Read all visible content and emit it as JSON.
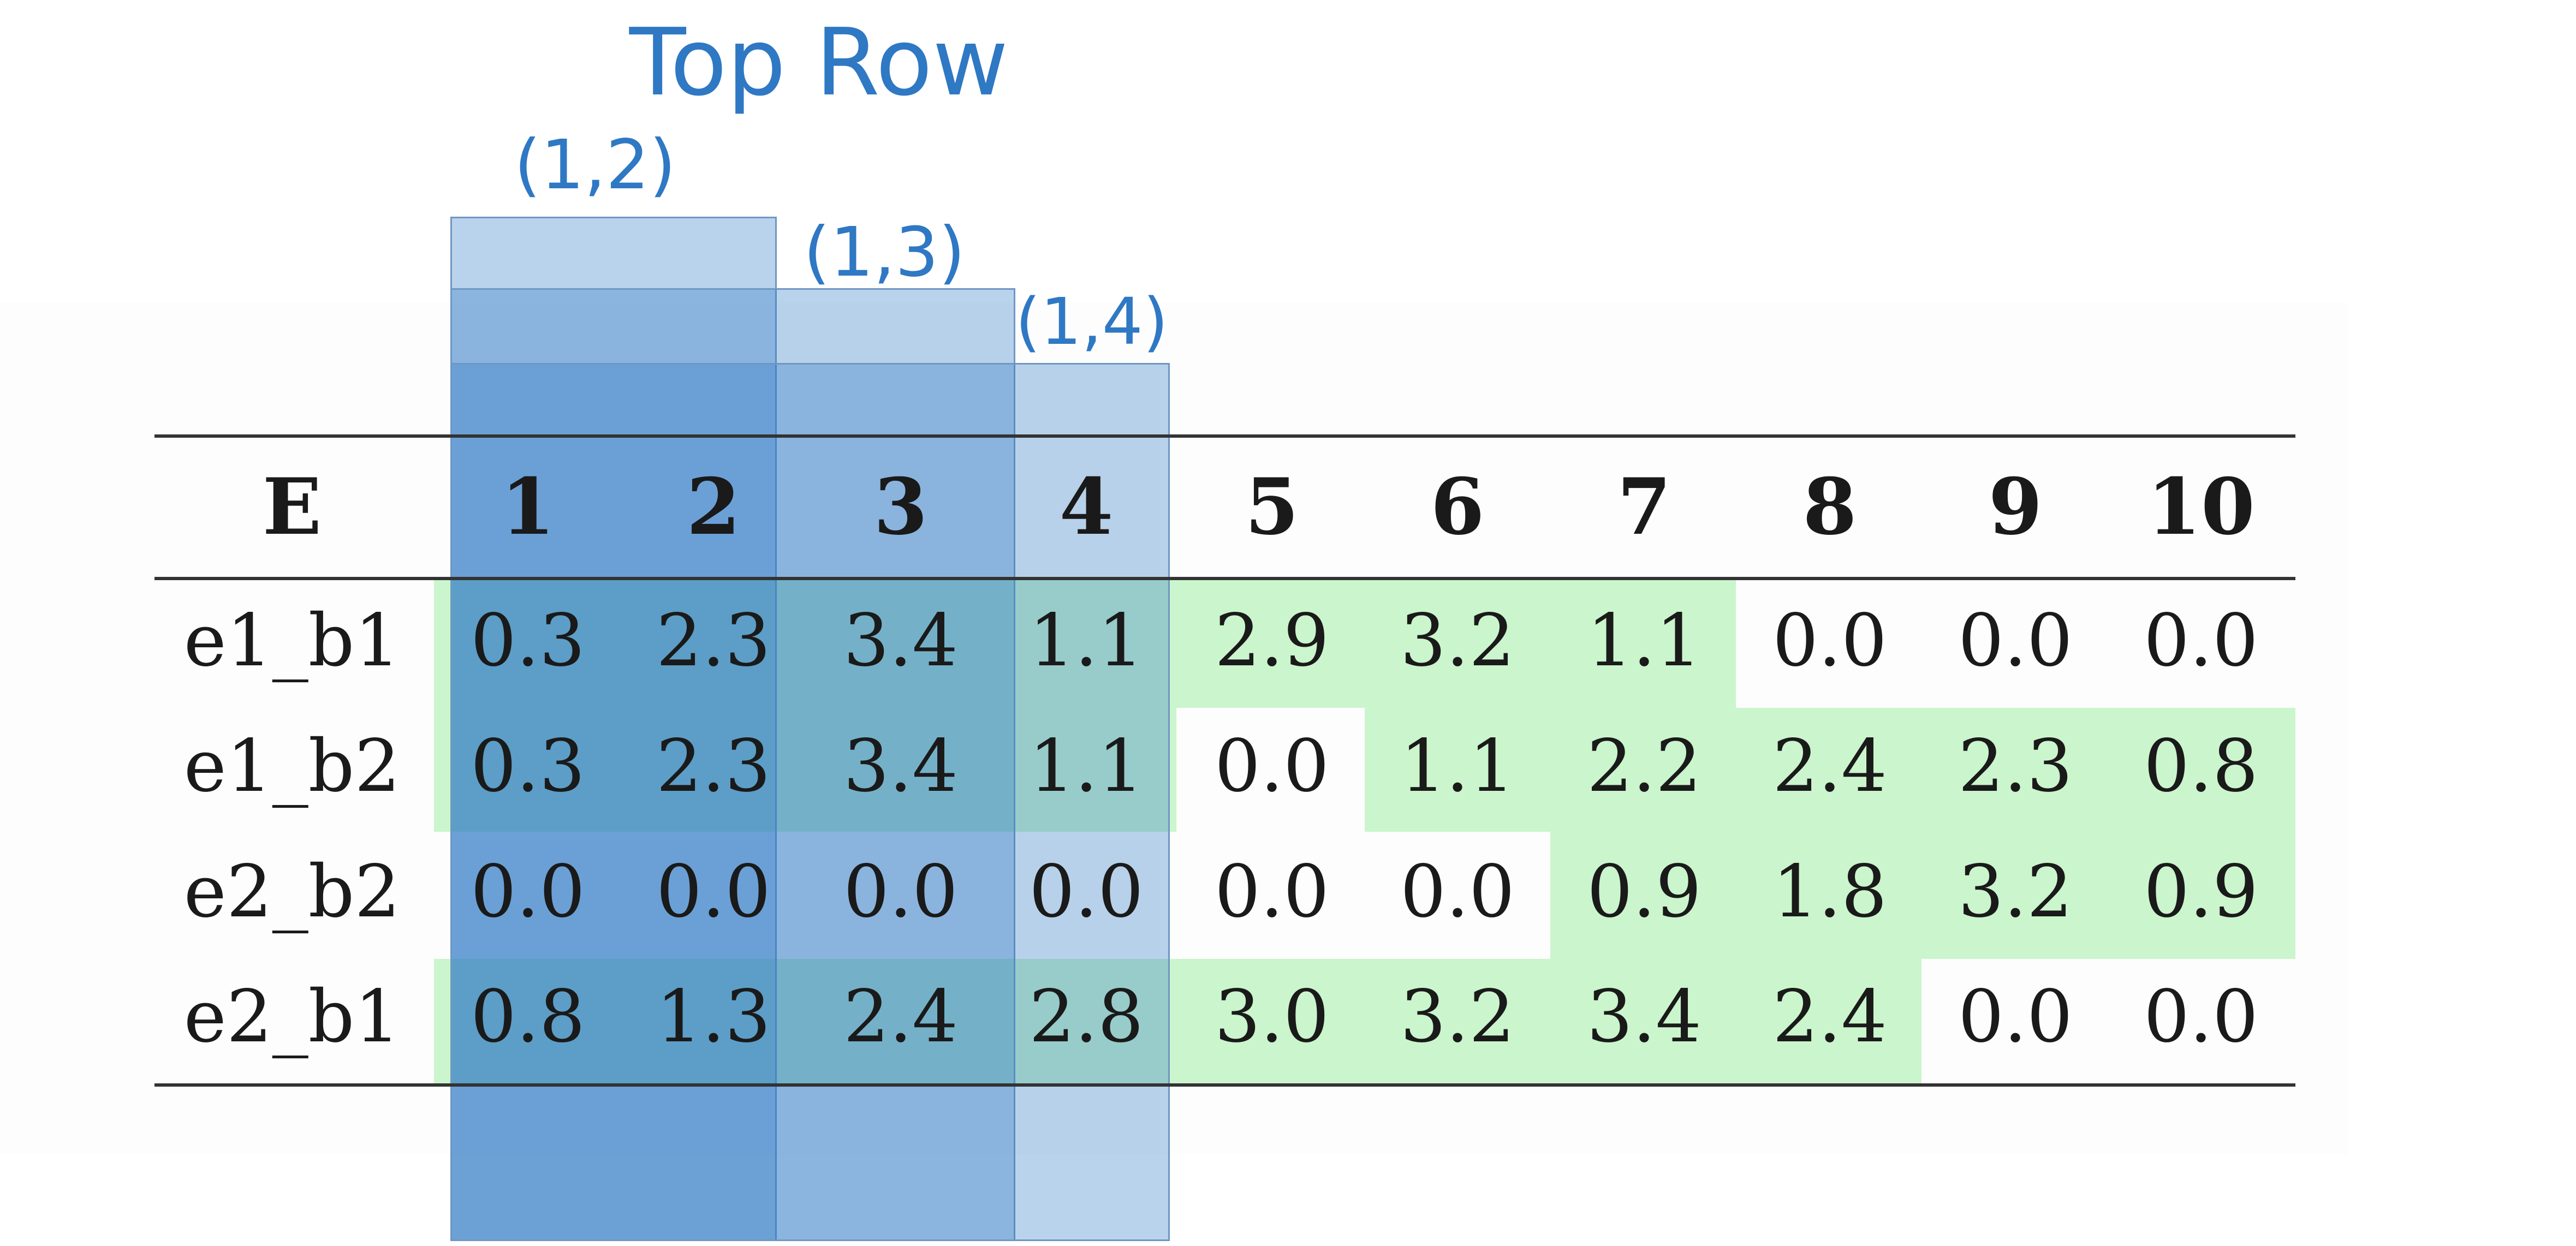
{
  "annotation": {
    "title": "Top Row",
    "band_labels": [
      "(1,2)",
      "(1,3)",
      "(1,4)"
    ]
  },
  "table": {
    "corner_header": "E",
    "column_headers": [
      "1",
      "2",
      "3",
      "4",
      "5",
      "6",
      "7",
      "8",
      "9",
      "10"
    ],
    "rows": [
      {
        "label": "e1_b1",
        "values": [
          "0.3",
          "2.3",
          "3.4",
          "1.1",
          "2.9",
          "3.2",
          "1.1",
          "0.0",
          "0.0",
          "0.0"
        ]
      },
      {
        "label": "e1_b2",
        "values": [
          "0.3",
          "2.3",
          "3.4",
          "1.1",
          "0.0",
          "1.1",
          "2.2",
          "2.4",
          "2.3",
          "0.8"
        ]
      },
      {
        "label": "e2_b2",
        "values": [
          "0.0",
          "0.0",
          "0.0",
          "0.0",
          "0.0",
          "0.0",
          "0.9",
          "1.8",
          "3.2",
          "0.9"
        ]
      },
      {
        "label": "e2_b1",
        "values": [
          "0.8",
          "1.3",
          "2.4",
          "2.8",
          "3.0",
          "3.2",
          "3.4",
          "2.4",
          "0.0",
          "0.0"
        ]
      }
    ]
  },
  "colors": {
    "highlight_green": "#cbf5cc",
    "band_blue": "#2f78c4",
    "annotation_blue": "#2f78c4",
    "rule": "#333333"
  }
}
